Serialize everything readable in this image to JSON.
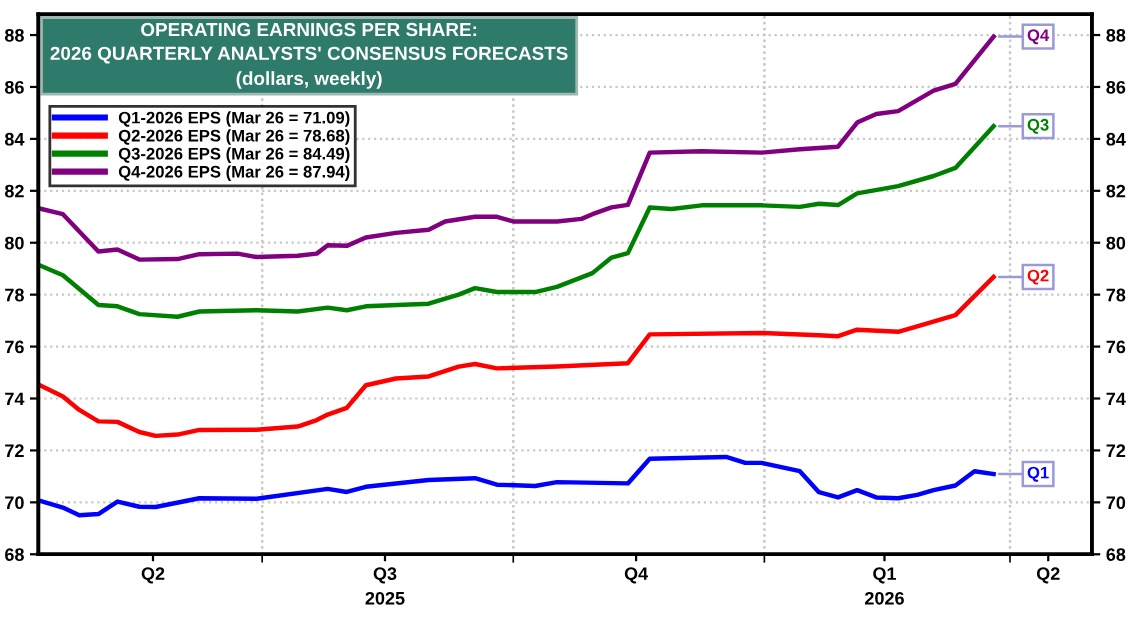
{
  "chart_data": {
    "type": "line",
    "title": "OPERATING EARNINGS PER SHARE:\n2026 QUARTERLY ANALYSTS' CONSENSUS FORECASTS",
    "subtitle": "(dollars, weekly)",
    "series": [
      {
        "name": "Q1-2026 EPS (Mar 26 = 71.09)",
        "color": "#0000ff",
        "x": [
          "2025-04-10",
          "2025-04-19",
          "2025-04-25",
          "2025-05-02",
          "2025-05-09",
          "2025-05-17",
          "2025-05-23",
          "2025-06-08",
          "2025-06-29",
          "2025-07-25",
          "2025-08-01",
          "2025-08-08",
          "2025-08-31",
          "2025-09-17",
          "2025-09-25",
          "2025-10-09",
          "2025-10-17",
          "2025-11-12",
          "2025-11-20",
          "2025-12-18",
          "2025-12-25",
          "2025-12-31",
          "2026-01-14",
          "2026-01-21",
          "2026-01-28",
          "2026-02-04",
          "2026-02-11",
          "2026-02-19",
          "2026-02-26",
          "2026-03-04",
          "2026-03-12",
          "2026-03-19",
          "2026-03-26"
        ],
        "values": [
          70.08,
          69.8,
          69.5,
          69.55,
          70.03,
          69.83,
          69.82,
          70.16,
          70.14,
          70.52,
          70.4,
          70.6,
          70.86,
          70.93,
          70.68,
          70.63,
          70.78,
          70.73,
          71.68,
          71.75,
          71.52,
          71.52,
          71.2,
          70.39,
          70.19,
          70.47,
          70.19,
          70.16,
          70.29,
          70.47,
          70.65,
          71.2,
          71.09
        ]
      },
      {
        "name": "Q2-2026 EPS (Mar 26 = 78.68)",
        "color": "#ff0000",
        "x": [
          "2025-04-10",
          "2025-04-19",
          "2025-04-25",
          "2025-05-02",
          "2025-05-09",
          "2025-05-17",
          "2025-05-23",
          "2025-05-31",
          "2025-06-08",
          "2025-06-29",
          "2025-07-14",
          "2025-07-21",
          "2025-07-25",
          "2025-08-01",
          "2025-08-08",
          "2025-08-19",
          "2025-08-31",
          "2025-09-11",
          "2025-09-17",
          "2025-09-25",
          "2025-10-17",
          "2025-11-12",
          "2025-11-20",
          "2025-12-31",
          "2026-01-21",
          "2026-01-28",
          "2026-02-04",
          "2026-02-19",
          "2026-02-26",
          "2026-03-12",
          "2026-03-26"
        ],
        "values": [
          74.54,
          74.08,
          73.56,
          73.12,
          73.1,
          72.71,
          72.56,
          72.61,
          72.79,
          72.8,
          72.92,
          73.17,
          73.38,
          73.64,
          74.51,
          74.77,
          74.85,
          75.23,
          75.33,
          75.16,
          75.23,
          75.36,
          76.47,
          76.52,
          76.44,
          76.4,
          76.65,
          76.57,
          76.78,
          77.21,
          78.68
        ]
      },
      {
        "name": "Q3-2026 EPS (Mar 26 = 84.49)",
        "color": "#008000",
        "x": [
          "2025-04-10",
          "2025-04-19",
          "2025-05-02",
          "2025-05-09",
          "2025-05-17",
          "2025-05-31",
          "2025-06-08",
          "2025-06-29",
          "2025-07-14",
          "2025-07-25",
          "2025-08-01",
          "2025-08-08",
          "2025-08-31",
          "2025-09-11",
          "2025-09-17",
          "2025-09-25",
          "2025-10-09",
          "2025-10-17",
          "2025-10-30",
          "2025-11-06",
          "2025-11-12",
          "2025-11-20",
          "2025-11-28",
          "2025-12-09",
          "2025-12-31",
          "2026-01-14",
          "2026-01-21",
          "2026-01-28",
          "2026-02-04",
          "2026-02-19",
          "2026-03-04",
          "2026-03-12",
          "2026-03-26"
        ],
        "values": [
          79.15,
          78.75,
          77.6,
          77.55,
          77.25,
          77.15,
          77.35,
          77.4,
          77.35,
          77.5,
          77.4,
          77.55,
          77.65,
          78.0,
          78.25,
          78.1,
          78.1,
          78.3,
          78.83,
          79.43,
          79.6,
          81.36,
          81.3,
          81.44,
          81.44,
          81.38,
          81.5,
          81.45,
          81.9,
          82.18,
          82.57,
          82.88,
          84.49
        ]
      },
      {
        "name": "Q4-2026 EPS (Mar 26 = 87.94)",
        "color": "#800080",
        "x": [
          "2025-04-10",
          "2025-04-19",
          "2025-05-02",
          "2025-05-09",
          "2025-05-17",
          "2025-05-31",
          "2025-06-08",
          "2025-06-22",
          "2025-06-29",
          "2025-07-14",
          "2025-07-21",
          "2025-07-25",
          "2025-08-01",
          "2025-08-08",
          "2025-08-19",
          "2025-08-31",
          "2025-09-06",
          "2025-09-17",
          "2025-09-25",
          "2025-10-01",
          "2025-10-17",
          "2025-10-26",
          "2025-10-30",
          "2025-11-06",
          "2025-11-12",
          "2025-11-20",
          "2025-12-09",
          "2025-12-31",
          "2026-01-14",
          "2026-01-28",
          "2026-02-04",
          "2026-02-11",
          "2026-02-19",
          "2026-03-04",
          "2026-03-12",
          "2026-03-26"
        ],
        "values": [
          81.33,
          81.1,
          79.66,
          79.74,
          79.35,
          79.37,
          79.56,
          79.58,
          79.45,
          79.5,
          79.58,
          79.9,
          79.88,
          80.2,
          80.38,
          80.5,
          80.82,
          81.0,
          81.0,
          80.82,
          80.82,
          80.92,
          81.1,
          81.36,
          81.46,
          83.47,
          83.52,
          83.47,
          83.6,
          83.7,
          84.63,
          84.96,
          85.07,
          85.86,
          86.12,
          87.94
        ]
      }
    ],
    "annotations": [
      {
        "text": "Q1",
        "x": "2026-03-26",
        "y": 71.09
      },
      {
        "text": "Q2",
        "x": "2026-03-26",
        "y": 78.68
      },
      {
        "text": "Q3",
        "x": "2026-03-26",
        "y": 84.49
      },
      {
        "text": "Q4",
        "x": "2026-03-26",
        "y": 87.94
      }
    ],
    "xlim": [
      "2025-04-10",
      "2026-05-01"
    ],
    "xticks": [
      {
        "value": "2025-07-01",
        "label": null
      },
      {
        "value": "2025-10-01",
        "label": null
      },
      {
        "value": "2026-01-01",
        "label": null
      },
      {
        "value": "2026-04-01",
        "label": null
      },
      {
        "value": "2025-05-22",
        "label": "Q2"
      },
      {
        "value": "2025-08-15",
        "label": "Q3\n2025"
      },
      {
        "value": "2025-11-15",
        "label": "Q4"
      },
      {
        "value": "2026-02-14",
        "label": "Q1\n2026"
      },
      {
        "value": "2026-04-15",
        "label": "Q2"
      }
    ],
    "ylim": [
      68,
      88.8
    ],
    "yticks": [
      68,
      70,
      72,
      74,
      76,
      78,
      80,
      82,
      84,
      86,
      88
    ],
    "y2lim": [
      68,
      88.8
    ],
    "y2ticks": [
      68,
      70,
      72,
      74,
      76,
      78,
      80,
      82,
      84,
      86,
      88
    ],
    "grid": true,
    "legend": "top left",
    "marker": "none",
    "line_style": "solid"
  }
}
